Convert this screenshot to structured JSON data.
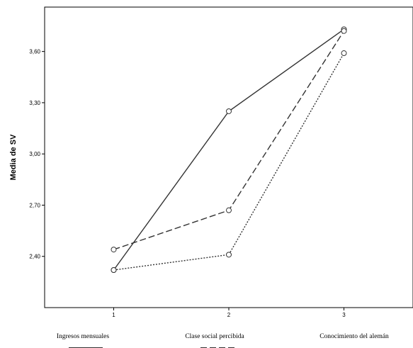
{
  "chart_data": {
    "type": "line",
    "xlabel": "",
    "ylabel": "Media de SV",
    "x": [
      1,
      2,
      3
    ],
    "xlim": [
      0.4,
      3.6
    ],
    "ylim": [
      2.1,
      3.86
    ],
    "yticks": [
      "2,40",
      "2,70",
      "3,00",
      "3,30",
      "3,60"
    ],
    "ytick_values": [
      2.4,
      2.7,
      3.0,
      3.3,
      3.6
    ],
    "xticks": [
      "1",
      "2",
      "3"
    ],
    "grid": false,
    "series": [
      {
        "name": "Ingresos mensuales",
        "values": [
          2.32,
          3.25,
          3.73
        ],
        "style": "solid"
      },
      {
        "name": "Clase social percibida",
        "values": [
          2.44,
          2.67,
          3.72
        ],
        "style": "dashed"
      },
      {
        "name": "Conocimiento del alemán",
        "values": [
          2.32,
          2.41,
          3.59
        ],
        "style": "dotted"
      }
    ],
    "legend_placement": "bottom"
  }
}
